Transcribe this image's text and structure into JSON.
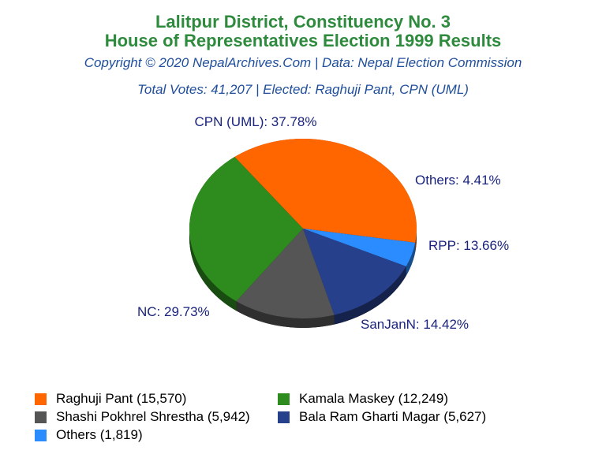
{
  "header": {
    "title_line1": "Lalitpur District, Constituency No. 3",
    "title_line2": "House of Representatives Election 1999 Results",
    "copyright": "Copyright © 2020 NepalArchives.Com | Data: Nepal Election Commission",
    "totals": "Total Votes: 41,207 | Elected: Raghuji Pant, CPN (UML)"
  },
  "chart_data": {
    "type": "pie",
    "title": "Lalitpur District, Constituency No. 3 House of Representatives Election 1999 Results",
    "slices": [
      {
        "party": "CPN (UML)",
        "label": "CPN (UML): 37.78%",
        "percent": 37.78,
        "color": "#ff6600"
      },
      {
        "party": "Others",
        "label": "Others: 4.41%",
        "percent": 4.41,
        "color": "#2b8cff"
      },
      {
        "party": "RPP",
        "label": "RPP: 13.66%",
        "percent": 13.66,
        "color": "#27408b"
      },
      {
        "party": "SanJanN",
        "label": "SanJanN: 14.42%",
        "percent": 14.42,
        "color": "#555555"
      },
      {
        "party": "NC",
        "label": "NC: 29.73%",
        "percent": 29.73,
        "color": "#2e8b1e"
      }
    ],
    "legend": [
      {
        "label": "Raghuji Pant (15,570)",
        "votes": 15570,
        "color": "#ff6600"
      },
      {
        "label": "Kamala Maskey (12,249)",
        "votes": 12249,
        "color": "#2e8b1e"
      },
      {
        "label": "Shashi Pokhrel Shrestha (5,942)",
        "votes": 5942,
        "color": "#555555"
      },
      {
        "label": "Bala Ram Gharti Magar (5,627)",
        "votes": 5627,
        "color": "#27408b"
      },
      {
        "label": "Others (1,819)",
        "votes": 1819,
        "color": "#2b8cff"
      }
    ],
    "legend_position": "bottom"
  }
}
